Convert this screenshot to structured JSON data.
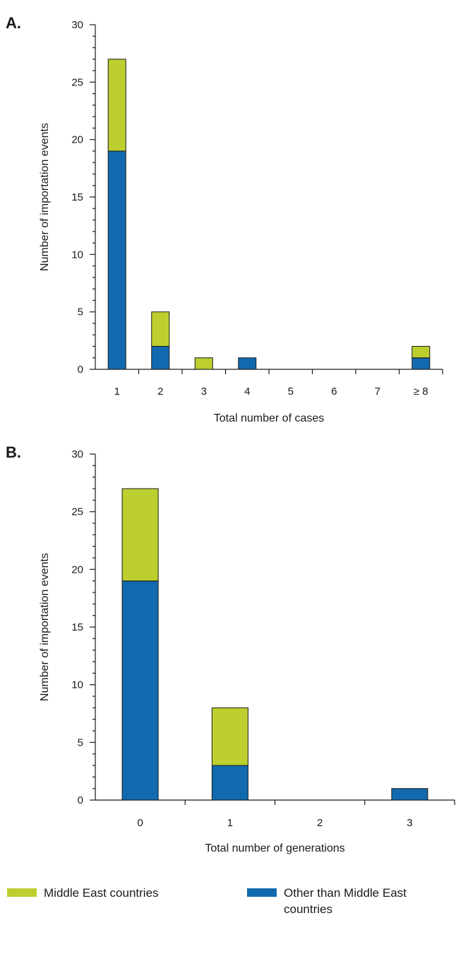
{
  "colors": {
    "middle_east": "#bccf2f",
    "other": "#116aaf",
    "outline": "#1a1a1a"
  },
  "legend": {
    "middle_east": "Middle East countries",
    "other": "Other than Middle East countries"
  },
  "chart_data": [
    {
      "panel": "A.",
      "type": "bar",
      "stacked": true,
      "categories": [
        "1",
        "2",
        "3",
        "4",
        "5",
        "6",
        "7",
        "≥ 8"
      ],
      "series": [
        {
          "name": "Other than Middle East countries",
          "color_key": "other",
          "values": [
            19,
            2,
            0,
            1,
            0,
            0,
            0,
            1
          ]
        },
        {
          "name": "Middle East countries",
          "color_key": "middle_east",
          "values": [
            8,
            3,
            1,
            0,
            0,
            0,
            0,
            1
          ]
        }
      ],
      "xlabel": "Total number of cases",
      "ylabel": "Number of importation events",
      "ylim": [
        0,
        30
      ],
      "yticks": [
        0,
        5,
        10,
        15,
        20,
        25,
        30
      ],
      "grid": false
    },
    {
      "panel": "B.",
      "type": "bar",
      "stacked": true,
      "categories": [
        "0",
        "1",
        "2",
        "3"
      ],
      "series": [
        {
          "name": "Other than Middle East countries",
          "color_key": "other",
          "values": [
            19,
            3,
            0,
            1
          ]
        },
        {
          "name": "Middle East countries",
          "color_key": "middle_east",
          "values": [
            8,
            5,
            0,
            0
          ]
        }
      ],
      "xlabel": "Total number of generations",
      "ylabel": "Number of importation events",
      "ylim": [
        0,
        30
      ],
      "yticks": [
        0,
        5,
        10,
        15,
        20,
        25,
        30
      ],
      "grid": false
    }
  ]
}
